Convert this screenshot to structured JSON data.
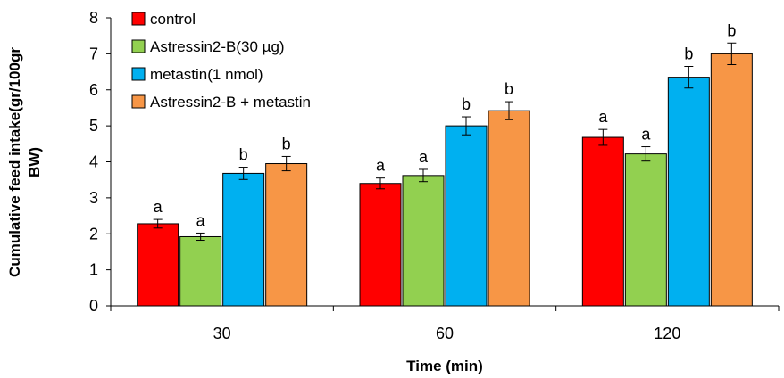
{
  "chart_data": {
    "type": "bar",
    "categories": [
      "30",
      "60",
      "120"
    ],
    "xlabel": "Time (min)",
    "ylabel_lines": [
      "Cumulative feed intake(gr/100gr",
      "BW)"
    ],
    "ylim": [
      0,
      8
    ],
    "yticks": [
      "0",
      "1",
      "2",
      "3",
      "4",
      "5",
      "6",
      "7",
      "8"
    ],
    "legend_position": "top-left",
    "grid": false,
    "series": [
      {
        "name": "control",
        "color": "#ff0000",
        "values": [
          2.28,
          3.4,
          4.68
        ],
        "errors": [
          0.12,
          0.15,
          0.22
        ],
        "labels": [
          "a",
          "a",
          "a"
        ]
      },
      {
        "name": "Astressin2-B(30 µg)",
        "color": "#92d050",
        "values": [
          1.92,
          3.62,
          4.22
        ],
        "errors": [
          0.1,
          0.17,
          0.2
        ],
        "labels": [
          "a",
          "a",
          "a"
        ]
      },
      {
        "name": "metastin(1 nmol)",
        "color": "#00b0f0",
        "values": [
          3.68,
          5.0,
          6.35
        ],
        "errors": [
          0.17,
          0.25,
          0.3
        ],
        "labels": [
          "b",
          "b",
          "b"
        ]
      },
      {
        "name": "Astressin2-B + metastin",
        "color": "#f79646",
        "values": [
          3.95,
          5.42,
          7.0
        ],
        "errors": [
          0.2,
          0.25,
          0.3
        ],
        "labels": [
          "b",
          "b",
          "b"
        ]
      }
    ]
  }
}
